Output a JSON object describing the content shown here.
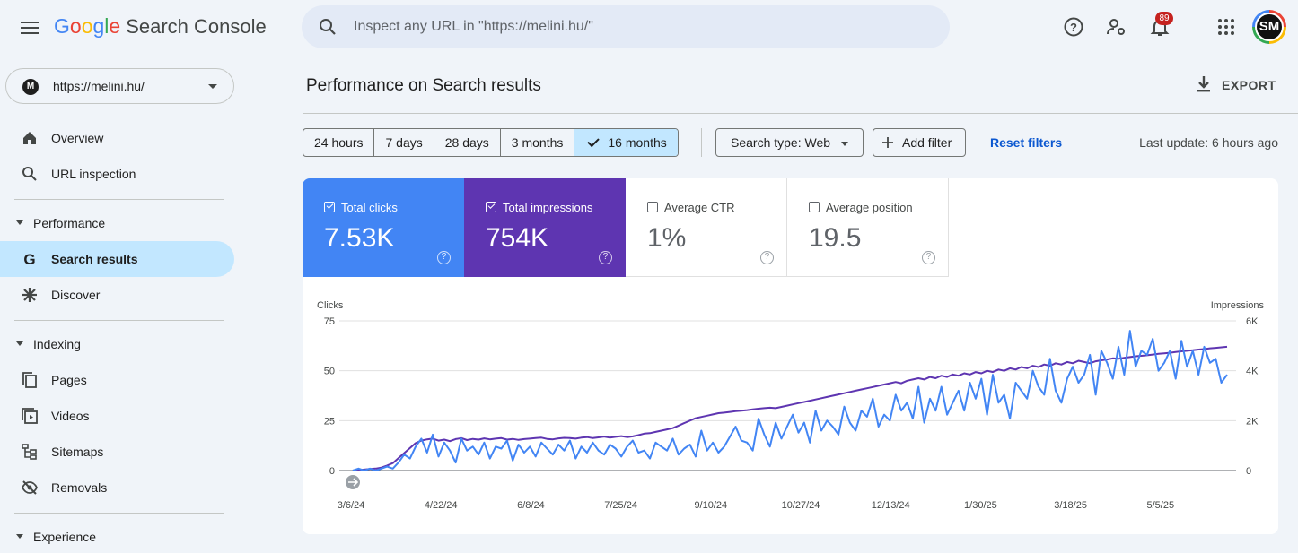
{
  "colors": {
    "clicks": "#4285f4",
    "impressions": "#5e35b1",
    "accent": "#0b57d0",
    "active_nav": "#c2e7ff",
    "badge": "#c5221f"
  },
  "app": {
    "logo_letters": [
      "G",
      "o",
      "o",
      "g",
      "l",
      "e"
    ],
    "logo_colors": [
      "#4285f4",
      "#ea4335",
      "#fbbc04",
      "#4285f4",
      "#34a853",
      "#ea4335"
    ],
    "product_name": "Search Console"
  },
  "search": {
    "placeholder": "Inspect any URL in \"https://melini.hu/\""
  },
  "topbar": {
    "help_icon": "help-icon",
    "settings_icon": "user-settings-icon",
    "notifications_count": "89",
    "apps_icon": "apps-grid-icon",
    "avatar_initials": "SM"
  },
  "property": {
    "letter": "M",
    "url": "https://melini.hu/"
  },
  "sidebar": {
    "overview": "Overview",
    "url_inspection": "URL inspection",
    "performance_section": "Performance",
    "search_results": "Search results",
    "discover": "Discover",
    "indexing_section": "Indexing",
    "pages": "Pages",
    "videos": "Videos",
    "sitemaps": "Sitemaps",
    "removals": "Removals",
    "experience_section": "Experience"
  },
  "header": {
    "title": "Performance on Search results",
    "export_label": "EXPORT"
  },
  "filters": {
    "ranges": [
      "24 hours",
      "7 days",
      "28 days",
      "3 months",
      "16 months"
    ],
    "selected_range": "16 months",
    "search_type": "Search type: Web",
    "add_filter": "Add filter",
    "reset": "Reset filters",
    "last_update": "Last update: 6 hours ago"
  },
  "metrics": [
    {
      "name": "Total clicks",
      "value": "7.53K",
      "checked": true,
      "color": "#4285f4"
    },
    {
      "name": "Total impressions",
      "value": "754K",
      "checked": true,
      "color": "#5e35b1"
    },
    {
      "name": "Average CTR",
      "value": "1%",
      "checked": false
    },
    {
      "name": "Average position",
      "value": "19.5",
      "checked": false
    }
  ],
  "chart_data": {
    "type": "line",
    "left_axis_label": "Clicks",
    "right_axis_label": "Impressions",
    "left_ticks": [
      "75",
      "50",
      "25",
      "0"
    ],
    "right_ticks": [
      "6K",
      "4K",
      "2K",
      "0"
    ],
    "ylim_left": [
      0,
      75
    ],
    "ylim_right": [
      0,
      6000
    ],
    "x_tick_labels": [
      "3/6/24",
      "4/22/24",
      "6/8/24",
      "7/25/24",
      "9/10/24",
      "10/27/24",
      "12/13/24",
      "1/30/25",
      "3/18/25",
      "5/5/25"
    ],
    "grid": true,
    "series": [
      {
        "name": "Clicks",
        "axis": "left",
        "color": "#4285f4",
        "values": [
          0,
          1,
          0,
          1,
          0,
          1,
          2,
          1,
          4,
          8,
          6,
          12,
          16,
          9,
          18,
          7,
          14,
          10,
          4,
          16,
          10,
          12,
          8,
          14,
          6,
          12,
          11,
          15,
          5,
          13,
          9,
          12,
          7,
          14,
          11,
          8,
          13,
          10,
          15,
          6,
          12,
          9,
          14,
          10,
          8,
          13,
          11,
          7,
          12,
          15,
          9,
          10,
          6,
          14,
          12,
          10,
          16,
          8,
          11,
          13,
          7,
          20,
          10,
          14,
          9,
          12,
          17,
          22,
          15,
          14,
          10,
          26,
          18,
          12,
          24,
          16,
          22,
          28,
          19,
          24,
          14,
          30,
          20,
          25,
          22,
          18,
          32,
          24,
          20,
          30,
          27,
          36,
          22,
          28,
          25,
          38,
          30,
          34,
          26,
          42,
          24,
          36,
          30,
          42,
          28,
          34,
          40,
          30,
          44,
          36,
          46,
          28,
          48,
          34,
          38,
          26,
          44,
          40,
          36,
          50,
          42,
          38,
          56,
          40,
          34,
          46,
          52,
          44,
          48,
          58,
          38,
          60,
          54,
          46,
          62,
          48,
          70,
          52,
          60,
          58,
          66,
          50,
          54,
          60,
          46,
          65,
          52,
          60,
          48,
          62,
          54,
          56,
          44,
          48
        ]
      },
      {
        "name": "Impressions",
        "axis": "right",
        "color": "#5e35b1",
        "values": [
          0,
          20,
          40,
          60,
          80,
          120,
          200,
          300,
          500,
          700,
          900,
          1100,
          1200,
          1250,
          1280,
          1200,
          1240,
          1180,
          1260,
          1300,
          1220,
          1270,
          1240,
          1290,
          1250,
          1280,
          1300,
          1240,
          1270,
          1230,
          1260,
          1280,
          1300,
          1320,
          1270,
          1250,
          1290,
          1310,
          1300,
          1280,
          1320,
          1340,
          1300,
          1330,
          1360,
          1320,
          1350,
          1380,
          1340,
          1370,
          1420,
          1480,
          1500,
          1550,
          1600,
          1650,
          1700,
          1800,
          1900,
          2000,
          2100,
          2150,
          2200,
          2250,
          2300,
          2320,
          2350,
          2380,
          2400,
          2420,
          2450,
          2480,
          2500,
          2520,
          2500,
          2550,
          2600,
          2650,
          2700,
          2750,
          2800,
          2850,
          2900,
          2950,
          3000,
          3050,
          3100,
          3150,
          3200,
          3250,
          3300,
          3350,
          3400,
          3450,
          3500,
          3550,
          3500,
          3600,
          3650,
          3700,
          3650,
          3750,
          3700,
          3800,
          3750,
          3850,
          3800,
          3900,
          3850,
          3950,
          3900,
          4000,
          3950,
          4050,
          4000,
          4100,
          4050,
          4150,
          4100,
          4200,
          4150,
          4250,
          4200,
          4300,
          4250,
          4350,
          4300,
          4400,
          4350,
          4300,
          4380,
          4420,
          4450,
          4500,
          4480,
          4520,
          4550,
          4580,
          4600,
          4620,
          4650,
          4680,
          4700,
          4720,
          4750,
          4780,
          4800,
          4820,
          4850,
          4870,
          4900,
          4920,
          4940,
          4960
        ]
      }
    ]
  }
}
